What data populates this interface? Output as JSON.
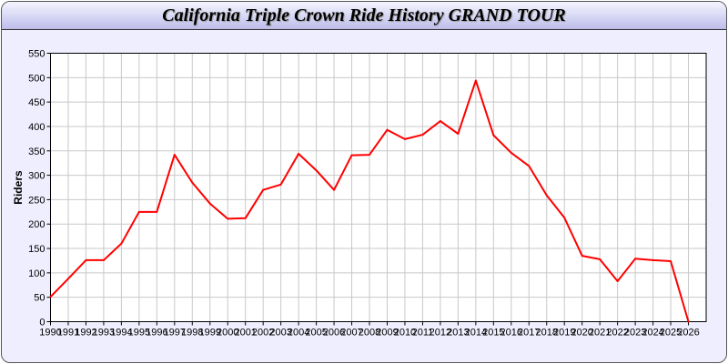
{
  "chart_data": {
    "type": "line",
    "title": "California Triple Crown Ride History GRAND TOUR",
    "xlabel": "",
    "ylabel": "Riders",
    "xlim": [
      1990,
      2027
    ],
    "ylim": [
      0,
      550
    ],
    "yticks": [
      0,
      50,
      100,
      150,
      200,
      250,
      300,
      350,
      400,
      450,
      500,
      550
    ],
    "grid": true,
    "line_color": "#ff0000",
    "x": [
      1990,
      1991,
      1992,
      1993,
      1994,
      1995,
      1996,
      1997,
      1998,
      1999,
      2000,
      2001,
      2002,
      2003,
      2004,
      2005,
      2006,
      2007,
      2008,
      2009,
      2010,
      2011,
      2012,
      2013,
      2014,
      2015,
      2016,
      2017,
      2018,
      2019,
      2020,
      2021,
      2022,
      2023,
      2024,
      2025,
      2026
    ],
    "values": [
      51,
      88,
      126,
      126,
      160,
      225,
      225,
      342,
      285,
      242,
      211,
      212,
      270,
      281,
      344,
      310,
      270,
      341,
      342,
      393,
      374,
      383,
      411,
      385,
      494,
      382,
      346,
      319,
      259,
      213,
      135,
      128,
      83,
      129,
      126,
      124,
      0
    ]
  }
}
